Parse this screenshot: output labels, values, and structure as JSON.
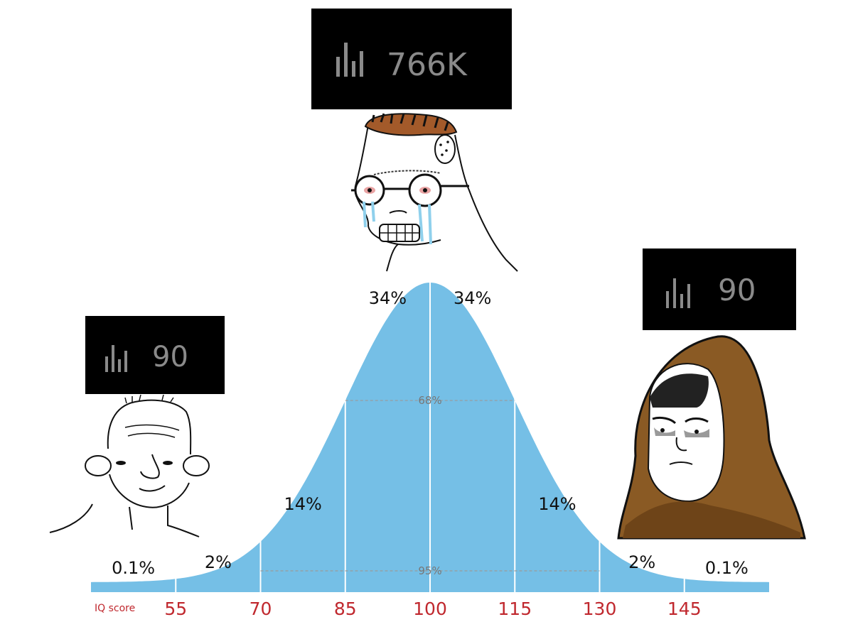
{
  "chart_data": {
    "type": "area",
    "xlabel": "IQ score",
    "x_ticks": [
      "55",
      "70",
      "85",
      "100",
      "115",
      "130",
      "145"
    ],
    "xlim": [
      40,
      160
    ],
    "mean": 100,
    "sd": 15,
    "segment_labels": [
      {
        "range": [
          40,
          55
        ],
        "text": "0.1%"
      },
      {
        "range": [
          55,
          70
        ],
        "text": "2%"
      },
      {
        "range": [
          70,
          85
        ],
        "text": "14%"
      },
      {
        "range": [
          85,
          100
        ],
        "text": "34%"
      },
      {
        "range": [
          100,
          115
        ],
        "text": "34%"
      },
      {
        "range": [
          115,
          130
        ],
        "text": "14%"
      },
      {
        "range": [
          130,
          145
        ],
        "text": "2%"
      },
      {
        "range": [
          145,
          160
        ],
        "text": "0.1%"
      }
    ],
    "bands": [
      {
        "range": [
          85,
          115
        ],
        "text": "68%"
      },
      {
        "range": [
          70,
          130
        ],
        "text": "95%"
      }
    ]
  },
  "badges": {
    "left": {
      "views": "90",
      "icon": "bar-chart-icon"
    },
    "center": {
      "views": "766K",
      "icon": "bar-chart-icon"
    },
    "right": {
      "views": "90",
      "icon": "bar-chart-icon"
    }
  },
  "colors": {
    "curve_fill": "#75bfe6",
    "tick_label": "#c0282e",
    "badge_bg": "#000000",
    "badge_text": "#8a8a8a"
  }
}
